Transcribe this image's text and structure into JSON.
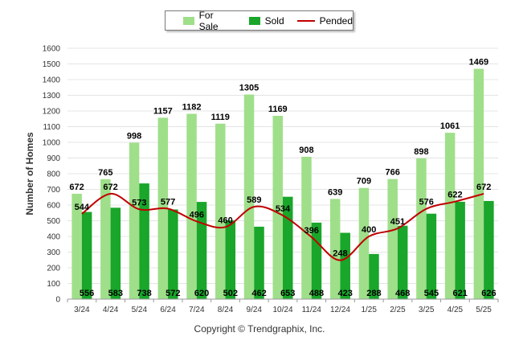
{
  "legend": {
    "for_sale": "For Sale",
    "sold": "Sold",
    "pended": "Pended"
  },
  "footer": {
    "copyright": "Copyright © Trendgraphix, Inc."
  },
  "colors": {
    "for_sale": "#9fdf8a",
    "sold": "#19a62a",
    "pended": "#c00000",
    "grid": "#e4e4e4"
  },
  "chart_data": {
    "type": "bar",
    "ylabel": "Number of Homes",
    "ylim": [
      0,
      1600
    ],
    "yticks": [
      0,
      100,
      200,
      300,
      400,
      500,
      600,
      700,
      800,
      900,
      1000,
      1100,
      1200,
      1300,
      1400,
      1500,
      1600
    ],
    "grid": true,
    "legend_position": "top-center",
    "categories": [
      "3/24",
      "4/24",
      "5/24",
      "6/24",
      "7/24",
      "8/24",
      "9/24",
      "10/24",
      "11/24",
      "12/24",
      "1/25",
      "2/25",
      "3/25",
      "4/25",
      "5/25"
    ],
    "series": [
      {
        "name": "For Sale",
        "kind": "bar",
        "values": [
          672,
          765,
          998,
          1157,
          1182,
          1119,
          1305,
          1169,
          908,
          639,
          709,
          766,
          898,
          1061,
          1469
        ]
      },
      {
        "name": "Sold",
        "kind": "bar",
        "values": [
          556,
          583,
          738,
          572,
          620,
          502,
          462,
          653,
          488,
          423,
          288,
          468,
          545,
          621,
          626
        ]
      },
      {
        "name": "Pended",
        "kind": "line",
        "values": [
          544,
          672,
          573,
          577,
          496,
          460,
          589,
          534,
          396,
          248,
          400,
          451,
          576,
          622,
          672
        ]
      }
    ]
  }
}
